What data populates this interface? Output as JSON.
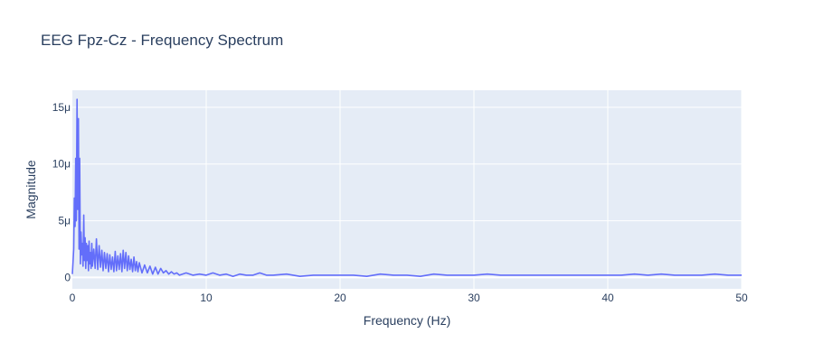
{
  "chart_data": {
    "type": "line",
    "title": "EEG Fpz-Cz - Frequency Spectrum",
    "xlabel": "Frequency (Hz)",
    "ylabel": "Magnitude",
    "xlim": [
      0,
      50
    ],
    "ylim": [
      -1e-06,
      1.65e-05
    ],
    "x_ticks": [
      0,
      10,
      20,
      30,
      40,
      50
    ],
    "x_tick_labels": [
      "0",
      "10",
      "20",
      "30",
      "40",
      "50"
    ],
    "y_ticks": [
      0,
      5e-06,
      1e-05,
      1.5e-05
    ],
    "y_tick_labels": [
      "0",
      "5μ",
      "10μ",
      "15μ"
    ],
    "grid": true,
    "plot_bg": "#e5ecf6",
    "line_color": "#636efa",
    "series": [
      {
        "x": [
          0.0,
          0.1,
          0.15,
          0.2,
          0.25,
          0.3,
          0.35,
          0.4,
          0.45,
          0.5,
          0.55,
          0.6,
          0.65,
          0.7,
          0.75,
          0.8,
          0.85,
          0.9,
          0.95,
          1.0,
          1.05,
          1.1,
          1.15,
          1.2,
          1.25,
          1.3,
          1.35,
          1.4,
          1.45,
          1.5,
          1.6,
          1.7,
          1.8,
          1.9,
          2.0,
          2.1,
          2.2,
          2.3,
          2.4,
          2.5,
          2.6,
          2.7,
          2.8,
          2.9,
          3.0,
          3.1,
          3.2,
          3.3,
          3.4,
          3.5,
          3.6,
          3.7,
          3.8,
          3.9,
          4.0,
          4.1,
          4.2,
          4.3,
          4.4,
          4.5,
          4.6,
          4.7,
          4.8,
          4.9,
          5.0,
          5.2,
          5.4,
          5.6,
          5.8,
          6.0,
          6.2,
          6.4,
          6.6,
          6.8,
          7.0,
          7.2,
          7.4,
          7.6,
          7.8,
          8.0,
          8.5,
          9.0,
          9.5,
          10.0,
          10.5,
          11.0,
          11.5,
          12.0,
          12.5,
          13.0,
          13.5,
          14.0,
          14.5,
          15.0,
          16.0,
          17.0,
          18.0,
          19.0,
          20.0,
          21.0,
          22.0,
          23.0,
          24.0,
          25.0,
          26.0,
          27.0,
          28.0,
          29.0,
          30.0,
          31.0,
          32.0,
          33.0,
          34.0,
          35.0,
          36.0,
          37.0,
          38.0,
          39.0,
          40.0,
          41.0,
          42.0,
          43.0,
          44.0,
          45.0,
          46.0,
          47.0,
          48.0,
          49.0,
          50.0
        ],
        "y": [
          3e-07,
          2.5e-06,
          7e-06,
          4.5e-06,
          1.05e-05,
          5e-06,
          1.57e-05,
          6e-06,
          1.4e-05,
          2.5e-06,
          1.05e-05,
          1.2e-06,
          4e-06,
          2e-06,
          3e-06,
          1e-06,
          5.5e-06,
          1.5e-06,
          3.5e-06,
          8e-07,
          3e-06,
          1.5e-06,
          2.8e-06,
          6e-07,
          3.2e-06,
          1.2e-06,
          2.2e-06,
          8e-07,
          3e-06,
          1e-06,
          2.5e-06,
          8e-07,
          3.4e-06,
          7e-07,
          2.8e-06,
          9e-07,
          2.4e-06,
          6e-07,
          2.2e-06,
          8e-07,
          2.1e-06,
          5e-07,
          2e-06,
          7e-07,
          1.8e-06,
          5e-07,
          2.3e-06,
          6e-07,
          1.9e-06,
          7e-07,
          2.1e-06,
          5e-07,
          2.4e-06,
          8e-07,
          2.2e-06,
          6e-07,
          1.9e-06,
          7e-07,
          1.6e-06,
          5e-07,
          1.8e-06,
          6e-07,
          1.4e-06,
          5e-07,
          1.3e-06,
          4e-07,
          1.1e-06,
          4e-07,
          1e-06,
          3e-07,
          9e-07,
          3e-07,
          8e-07,
          4e-07,
          6e-07,
          3e-07,
          5e-07,
          3e-07,
          4e-07,
          2e-07,
          4e-07,
          2e-07,
          3e-07,
          2e-07,
          4e-07,
          2e-07,
          3e-07,
          1e-07,
          3e-07,
          2e-07,
          2e-07,
          4e-07,
          2e-07,
          2e-07,
          3e-07,
          1e-07,
          2e-07,
          2e-07,
          2e-07,
          2e-07,
          1e-07,
          3e-07,
          2e-07,
          2e-07,
          1e-07,
          3e-07,
          2e-07,
          2e-07,
          2e-07,
          3e-07,
          2e-07,
          2e-07,
          2e-07,
          2e-07,
          2e-07,
          2e-07,
          2e-07,
          2e-07,
          2e-07,
          2e-07,
          3e-07,
          2e-07,
          3e-07,
          2e-07,
          2e-07,
          2e-07,
          3e-07,
          2e-07,
          2e-07
        ]
      }
    ]
  }
}
